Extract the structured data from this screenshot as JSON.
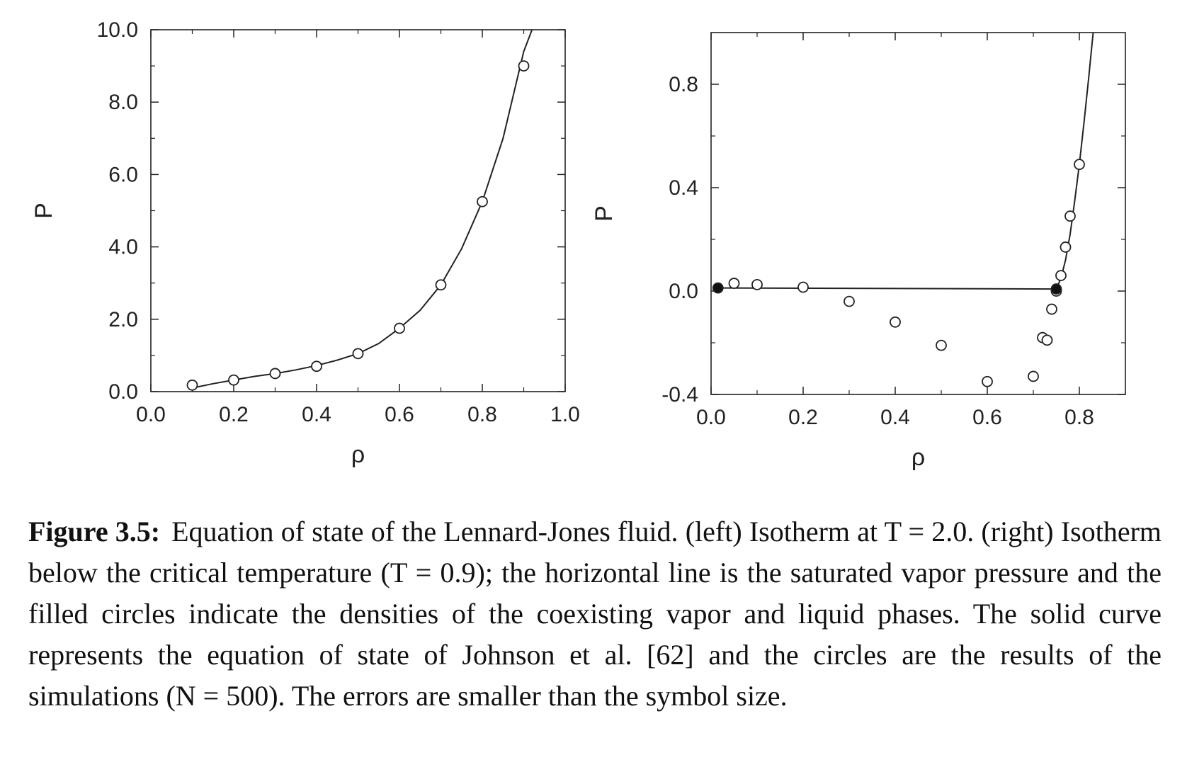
{
  "chart_data": [
    {
      "type": "scatter",
      "title": "",
      "xlabel": "ρ",
      "ylabel": "P",
      "xlim": [
        0.0,
        1.0
      ],
      "ylim": [
        0.0,
        10.0
      ],
      "xticks": [
        0.0,
        0.2,
        0.4,
        0.6,
        0.8,
        1.0
      ],
      "xtick_labels": [
        "0.0",
        "0.2",
        "0.4",
        "0.6",
        "0.8",
        "1.0"
      ],
      "yticks": [
        0.0,
        2.0,
        4.0,
        6.0,
        8.0,
        10.0
      ],
      "ytick_labels": [
        "0.0",
        "2.0",
        "4.0",
        "6.0",
        "8.0",
        "10.0"
      ],
      "series": [
        {
          "kind": "line",
          "x": [
            0.1,
            0.15,
            0.2,
            0.25,
            0.3,
            0.35,
            0.4,
            0.45,
            0.5,
            0.55,
            0.6,
            0.65,
            0.7,
            0.75,
            0.8,
            0.85,
            0.9,
            0.92
          ],
          "y": [
            0.1,
            0.22,
            0.32,
            0.42,
            0.5,
            0.6,
            0.72,
            0.87,
            1.05,
            1.33,
            1.75,
            2.25,
            2.95,
            3.95,
            5.25,
            7.0,
            9.4,
            10.0
          ]
        },
        {
          "kind": "open-circles",
          "x": [
            0.1,
            0.2,
            0.3,
            0.4,
            0.5,
            0.6,
            0.7,
            0.8,
            0.9
          ],
          "y": [
            0.18,
            0.32,
            0.5,
            0.7,
            1.05,
            1.75,
            2.95,
            5.25,
            9.0
          ]
        }
      ]
    },
    {
      "type": "scatter",
      "title": "",
      "xlabel": "ρ",
      "ylabel": "P",
      "xlim": [
        0.0,
        0.9
      ],
      "ylim": [
        -0.4,
        1.0
      ],
      "xticks": [
        0.0,
        0.2,
        0.4,
        0.6,
        0.8
      ],
      "xtick_labels": [
        "0.0",
        "0.2",
        "0.4",
        "0.6",
        "0.8"
      ],
      "yticks": [
        -0.4,
        0.0,
        0.4,
        0.8
      ],
      "ytick_labels": [
        "-0.4",
        "0.0",
        "0.4",
        "0.8"
      ],
      "series": [
        {
          "kind": "line",
          "x": [
            0.015,
            0.75
          ],
          "y": [
            0.012,
            0.008
          ]
        },
        {
          "kind": "line",
          "x": [
            0.75,
            0.76,
            0.77,
            0.78,
            0.79,
            0.8,
            0.81,
            0.82,
            0.83
          ],
          "y": [
            0.008,
            0.05,
            0.12,
            0.22,
            0.35,
            0.49,
            0.65,
            0.82,
            1.0
          ]
        },
        {
          "kind": "open-circles",
          "x": [
            0.05,
            0.1,
            0.2,
            0.3,
            0.4,
            0.5,
            0.6,
            0.7,
            0.72,
            0.73,
            0.74,
            0.75,
            0.76,
            0.77,
            0.78,
            0.8
          ],
          "y": [
            0.03,
            0.025,
            0.015,
            -0.04,
            -0.12,
            -0.21,
            -0.35,
            -0.33,
            -0.18,
            -0.19,
            -0.07,
            0.0,
            0.06,
            0.17,
            0.29,
            0.49
          ]
        },
        {
          "kind": "filled-circles",
          "x": [
            0.015,
            0.75
          ],
          "y": [
            0.012,
            0.008
          ]
        }
      ]
    }
  ],
  "caption": {
    "label": "Figure 3.5:",
    "text": "Equation of state of the Lennard-Jones fluid. (left) Isotherm at T = 2.0. (right) Isotherm below the critical temperature (T = 0.9); the horizontal line is the saturated vapor pressure and the filled circles indicate the densities of the coexisting vapor and liquid phases. The solid curve represents the equation of state of Johnson et al. [62] and the circles are the results of the simulations (N = 500). The errors are smaller than the symbol size."
  }
}
